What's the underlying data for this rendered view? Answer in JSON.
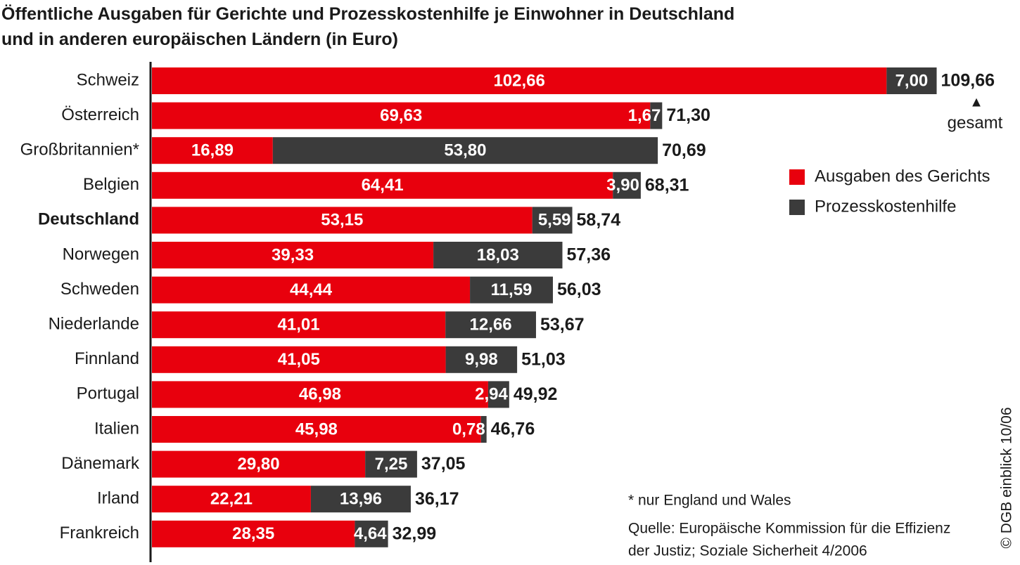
{
  "chart_data": {
    "type": "stacked-barh",
    "title": [
      "Öffentliche Ausgaben für Gerichte und Prozesskostenhilfe je Einwohner in Deutschland",
      "und in anderen europäischen Ländern (in Euro)"
    ],
    "categories": [
      "Schweiz",
      "Österreich",
      "Großbritannien*",
      "Belgien",
      "Deutschland",
      "Norwegen",
      "Schweden",
      "Niederlande",
      "Finnland",
      "Portugal",
      "Italien",
      "Dänemark",
      "Irland",
      "Frankreich"
    ],
    "highlight_category": "Deutschland",
    "series": [
      {
        "name": "Ausgaben des Gerichts",
        "color": "#e8000d",
        "values": [
          102.66,
          69.63,
          16.89,
          64.41,
          53.15,
          39.33,
          44.44,
          41.01,
          41.05,
          46.98,
          45.98,
          29.8,
          22.21,
          28.35
        ],
        "value_labels": [
          "102,66",
          "69,63",
          "16,89",
          "64,41",
          "53,15",
          "39,33",
          "44,44",
          "41,01",
          "41,05",
          "46,98",
          "45,98",
          "29,80",
          "22,21",
          "28,35"
        ]
      },
      {
        "name": "Prozesskostenhilfe",
        "color": "#3b3b3b",
        "values": [
          7.0,
          1.67,
          53.8,
          3.9,
          5.59,
          18.03,
          11.59,
          12.66,
          9.98,
          2.94,
          0.78,
          7.25,
          13.96,
          4.64
        ],
        "value_labels": [
          "7,00",
          "1,67",
          "53,80",
          "3,90",
          "5,59",
          "18,03",
          "11,59",
          "12,66",
          "9,98",
          "2,94",
          "0,78",
          "7,25",
          "13,96",
          "4,64"
        ]
      }
    ],
    "totals": {
      "values": [
        109.66,
        71.3,
        70.69,
        68.31,
        58.74,
        57.36,
        56.03,
        53.67,
        51.03,
        49.92,
        46.76,
        37.05,
        36.17,
        32.99
      ],
      "value_labels": [
        "109,66",
        "71,30",
        "70,69",
        "68,31",
        "58,74",
        "57,36",
        "56,03",
        "53,67",
        "51,03",
        "49,92",
        "46,76",
        "37,05",
        "36,17",
        "32,99"
      ]
    },
    "total_annotation": "gesamt",
    "xlim": [
      0,
      110
    ],
    "footnote": "* nur England und Wales",
    "source": [
      "Quelle: Europäische Kommission für die Effizienz",
      "der Justiz; Soziale Sicherheit 4/2006"
    ],
    "credit": "© DGB einblick 10/06"
  }
}
